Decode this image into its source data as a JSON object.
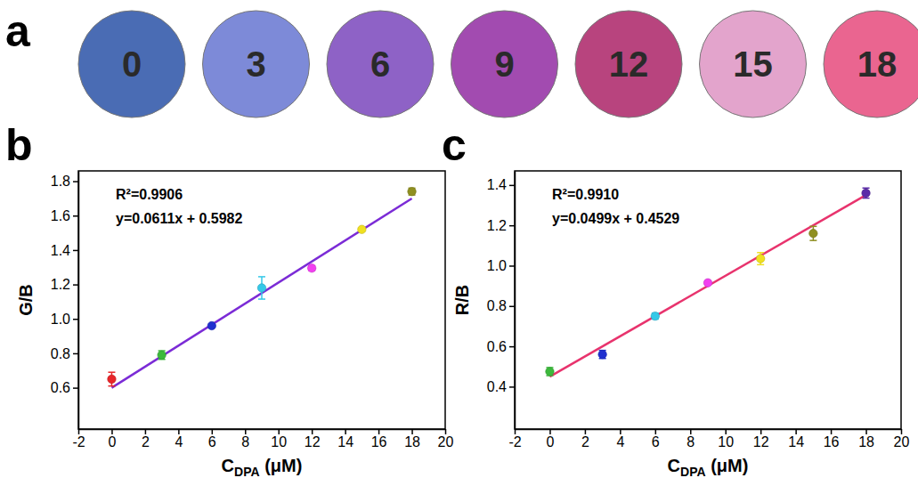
{
  "chart_data": [
    {
      "type": "swatch",
      "panel_label": "a",
      "categories": [
        0,
        3,
        6,
        9,
        12,
        15,
        18
      ],
      "colors": [
        "#4a6cb4",
        "#7d8ad8",
        "#8e62c6",
        "#a24bb0",
        "#b8447e",
        "#e3a4cc",
        "#ea6590"
      ]
    },
    {
      "type": "scatter",
      "panel_label": "b",
      "xlabel": {
        "text": "C",
        "subscript": "DPA",
        "suffix": " (μM)"
      },
      "ylabel": "G/B",
      "annotations": [
        "R²=0.9906",
        "y=0.0611x + 0.5982"
      ],
      "xlim": [
        -2,
        20
      ],
      "xticks": [
        -2,
        0,
        2,
        4,
        6,
        8,
        10,
        12,
        14,
        16,
        18,
        20
      ],
      "ylim": [
        0.36,
        1.86
      ],
      "yticks": [
        0.6,
        0.8,
        {
          "value": 1,
          "label": "1.0"
        },
        1.2,
        1.4,
        1.6,
        1.8
      ],
      "series": [
        {
          "type": "scatter",
          "marker": "circle",
          "x": [
            0,
            3,
            6,
            9,
            12,
            15,
            18
          ],
          "values": [
            0.65,
            0.79,
            0.96,
            1.18,
            1.295,
            1.52,
            1.74
          ],
          "errors": [
            0.04,
            0.025,
            0.01,
            0.065,
            0.015,
            0.01,
            0.02
          ],
          "colors": [
            "#e8262a",
            "#3cb93c",
            "#1f2fd0",
            "#34c8e8",
            "#f23ff0",
            "#f0e020",
            "#8f8f20"
          ]
        },
        {
          "type": "line",
          "line_style": "solid",
          "x": [
            0,
            18
          ],
          "values": [
            0.6,
            1.7
          ],
          "color": "#7b2bd6"
        }
      ]
    },
    {
      "type": "scatter",
      "panel_label": "c",
      "xlabel": {
        "text": "C",
        "subscript": "DPA",
        "suffix": " (μM)"
      },
      "ylabel": "R/B",
      "annotations": [
        "R²=0.9910",
        "y=0.0499x + 0.4529"
      ],
      "xlim": [
        -2,
        20
      ],
      "xticks": [
        -2,
        0,
        2,
        4,
        6,
        8,
        10,
        12,
        14,
        16,
        18,
        20
      ],
      "ylim": [
        0.19,
        1.47
      ],
      "yticks": [
        0.4,
        0.6,
        0.8,
        {
          "value": 1,
          "label": "1.0"
        },
        1.2,
        1.4
      ],
      "series": [
        {
          "type": "scatter",
          "marker": "circle",
          "x": [
            0,
            3,
            6,
            9,
            12,
            15,
            18
          ],
          "values": [
            0.475,
            0.56,
            0.75,
            0.915,
            1.035,
            1.16,
            1.36
          ],
          "errors": [
            0.02,
            0.02,
            0.015,
            0.01,
            0.03,
            0.035,
            0.025
          ],
          "colors": [
            "#3cb93c",
            "#1f2fd0",
            "#34c8e8",
            "#f23ff0",
            "#f0e020",
            "#8f8f20",
            "#5a2aa8"
          ]
        },
        {
          "type": "line",
          "line_style": "solid",
          "x": [
            0,
            18
          ],
          "values": [
            0.45,
            1.35
          ],
          "color": "#e8336d"
        }
      ]
    }
  ]
}
